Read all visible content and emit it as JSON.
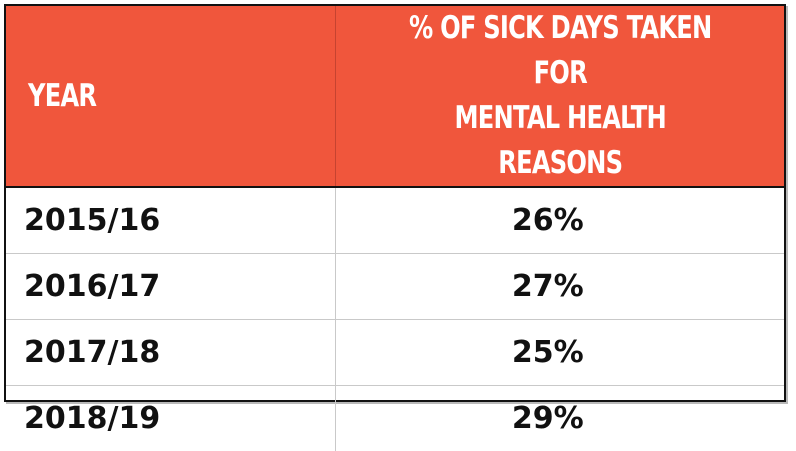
{
  "chart_data": {
    "type": "table",
    "columns": [
      "YEAR",
      "% OF SICK DAYS TAKEN FOR MENTAL HEALTH REASONS"
    ],
    "header": {
      "year": "YEAR",
      "pct_line1": "% OF SICK DAYS TAKEN FOR",
      "pct_line2": "MENTAL HEALTH REASONS"
    },
    "rows": [
      {
        "year": "2015/16",
        "value": "26%"
      },
      {
        "year": "2016/17",
        "value": "27%"
      },
      {
        "year": "2017/18",
        "value": "25%"
      },
      {
        "year": "2018/19",
        "value": "29%"
      }
    ]
  },
  "colors": {
    "header_background": "#f0563c",
    "header_text": "#ffffff",
    "body_text": "#111111"
  }
}
